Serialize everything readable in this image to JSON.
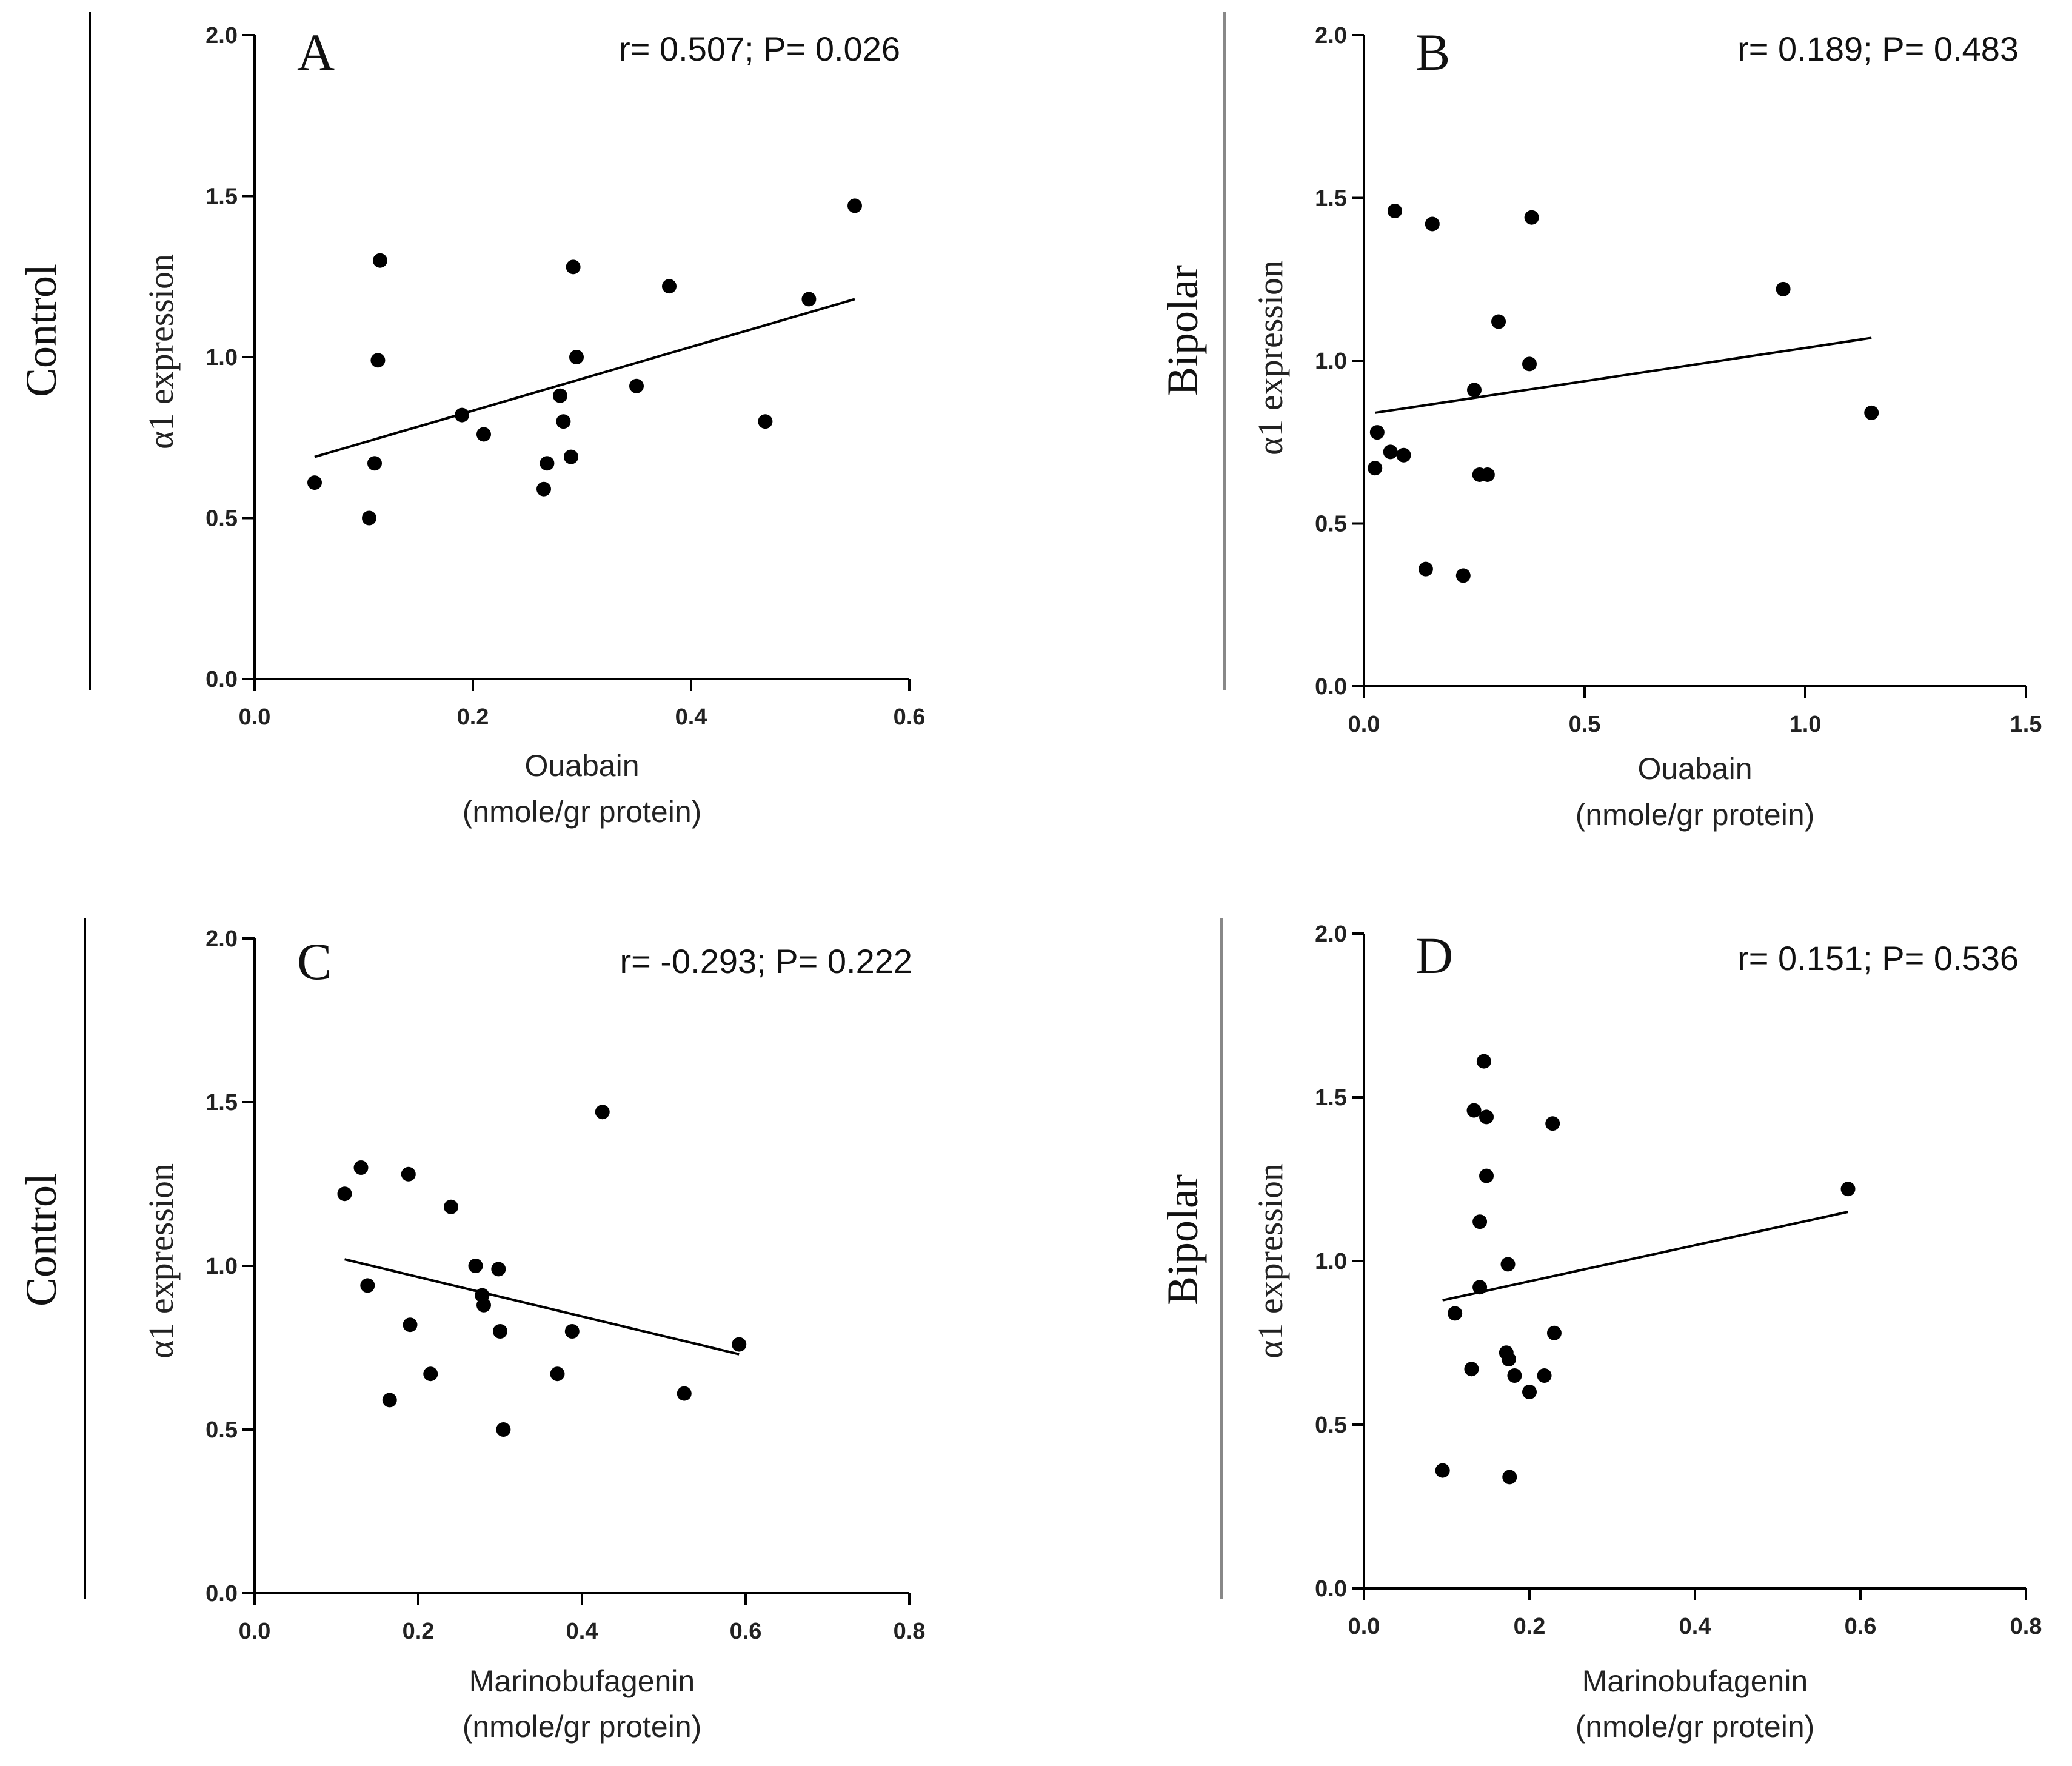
{
  "chart_data": [
    {
      "type": "scatter",
      "panel_label": "A",
      "group_label": "Control",
      "stats": "r= 0.507; P= 0.026",
      "ylabel": "α1 expression",
      "xlabel_line1": "Ouabain",
      "xlabel_line2": "(nmole/gr protein)",
      "xlim": [
        0,
        0.6
      ],
      "ylim": [
        0,
        2.0
      ],
      "xticks": [
        0.0,
        0.2,
        0.4,
        0.6
      ],
      "xtick_labels": [
        "0.0",
        "0.2",
        "0.4",
        "0.6"
      ],
      "yticks": [
        0.0,
        0.5,
        1.0,
        1.5,
        2.0
      ],
      "ytick_labels": [
        "0.0",
        "0.5",
        "1.0",
        "1.5",
        "2.0"
      ],
      "points": {
        "x": [
          0.055,
          0.105,
          0.11,
          0.113,
          0.115,
          0.19,
          0.21,
          0.265,
          0.268,
          0.28,
          0.283,
          0.29,
          0.292,
          0.295,
          0.35,
          0.38,
          0.468,
          0.508,
          0.55
        ],
        "y": [
          0.61,
          0.5,
          0.67,
          0.99,
          1.3,
          0.82,
          0.76,
          0.59,
          0.67,
          0.88,
          0.8,
          0.69,
          1.28,
          1.0,
          0.91,
          1.22,
          0.8,
          1.18,
          1.47
        ]
      },
      "fit_line": {
        "x": [
          0.055,
          0.55
        ],
        "y": [
          0.69,
          1.18
        ]
      }
    },
    {
      "type": "scatter",
      "panel_label": "B",
      "group_label": "Bipolar",
      "stats": "r= 0.189; P= 0.483",
      "ylabel": "α1 expression",
      "xlabel_line1": "Ouabain",
      "xlabel_line2": "(nmole/gr protein)",
      "xlim": [
        0,
        1.5
      ],
      "ylim": [
        0,
        2.0
      ],
      "xticks": [
        0.0,
        0.5,
        1.0,
        1.5
      ],
      "xtick_labels": [
        "0.0",
        "0.5",
        "1.0",
        "1.5"
      ],
      "yticks": [
        0.0,
        0.5,
        1.0,
        1.5,
        2.0
      ],
      "ytick_labels": [
        "0.0",
        "0.5",
        "1.0",
        "1.5",
        "2.0"
      ],
      "points": {
        "x": [
          0.025,
          0.03,
          0.06,
          0.07,
          0.09,
          0.14,
          0.155,
          0.225,
          0.25,
          0.262,
          0.28,
          0.305,
          0.375,
          0.38,
          0.95,
          1.15
        ],
        "y": [
          0.67,
          0.78,
          0.72,
          1.46,
          0.71,
          0.36,
          1.42,
          0.34,
          0.91,
          0.65,
          0.65,
          1.12,
          0.99,
          1.44,
          1.22,
          0.84
        ]
      },
      "fit_line": {
        "x": [
          0.025,
          1.15
        ],
        "y": [
          0.84,
          1.07
        ]
      }
    },
    {
      "type": "scatter",
      "panel_label": "C",
      "group_label": "Control",
      "stats": "r= -0.293; P= 0.222",
      "ylabel": "α1 expression",
      "xlabel_line1": "Marinobufagenin",
      "xlabel_line2": "(nmole/gr protein)",
      "xlim": [
        0,
        0.8
      ],
      "ylim": [
        0,
        2.0
      ],
      "xticks": [
        0.0,
        0.2,
        0.4,
        0.6,
        0.8
      ],
      "xtick_labels": [
        "0.0",
        "0.2",
        "0.4",
        "0.6",
        "0.8"
      ],
      "yticks": [
        0.0,
        0.5,
        1.0,
        1.5,
        2.0
      ],
      "ytick_labels": [
        "0.0",
        "0.5",
        "1.0",
        "1.5",
        "2.0"
      ],
      "points": {
        "x": [
          0.11,
          0.13,
          0.138,
          0.165,
          0.188,
          0.19,
          0.215,
          0.24,
          0.27,
          0.278,
          0.28,
          0.298,
          0.3,
          0.304,
          0.37,
          0.388,
          0.425,
          0.525,
          0.592
        ],
        "y": [
          1.22,
          1.3,
          0.94,
          0.59,
          1.28,
          0.82,
          0.67,
          1.18,
          1.0,
          0.91,
          0.88,
          0.99,
          0.8,
          0.5,
          0.67,
          0.8,
          1.47,
          0.61,
          0.76
        ]
      },
      "fit_line": {
        "x": [
          0.11,
          0.592
        ],
        "y": [
          1.02,
          0.73
        ]
      }
    },
    {
      "type": "scatter",
      "panel_label": "D",
      "group_label": "Bipolar",
      "stats": "r= 0.151; P= 0.536",
      "ylabel": "α1 expression",
      "xlabel_line1": "Marinobufagenin",
      "xlabel_line2": "(nmole/gr protein)",
      "xlim": [
        0,
        0.8
      ],
      "ylim": [
        0,
        2.0
      ],
      "xticks": [
        0.0,
        0.2,
        0.4,
        0.6,
        0.8
      ],
      "xtick_labels": [
        "0.0",
        "0.2",
        "0.4",
        "0.6",
        "0.8"
      ],
      "yticks": [
        0.0,
        0.5,
        1.0,
        1.5,
        2.0
      ],
      "ytick_labels": [
        "0.0",
        "0.5",
        "1.0",
        "1.5",
        "2.0"
      ],
      "points": {
        "x": [
          0.095,
          0.11,
          0.13,
          0.133,
          0.14,
          0.14,
          0.145,
          0.148,
          0.148,
          0.172,
          0.174,
          0.175,
          0.176,
          0.182,
          0.2,
          0.218,
          0.228,
          0.23,
          0.585
        ],
        "y": [
          0.36,
          0.84,
          0.67,
          1.46,
          1.12,
          0.92,
          1.61,
          1.26,
          1.44,
          0.72,
          0.99,
          0.7,
          0.34,
          0.65,
          0.6,
          0.65,
          1.42,
          0.78,
          1.22
        ]
      },
      "fit_line": {
        "x": [
          0.095,
          0.585
        ],
        "y": [
          0.88,
          1.15
        ]
      }
    }
  ]
}
